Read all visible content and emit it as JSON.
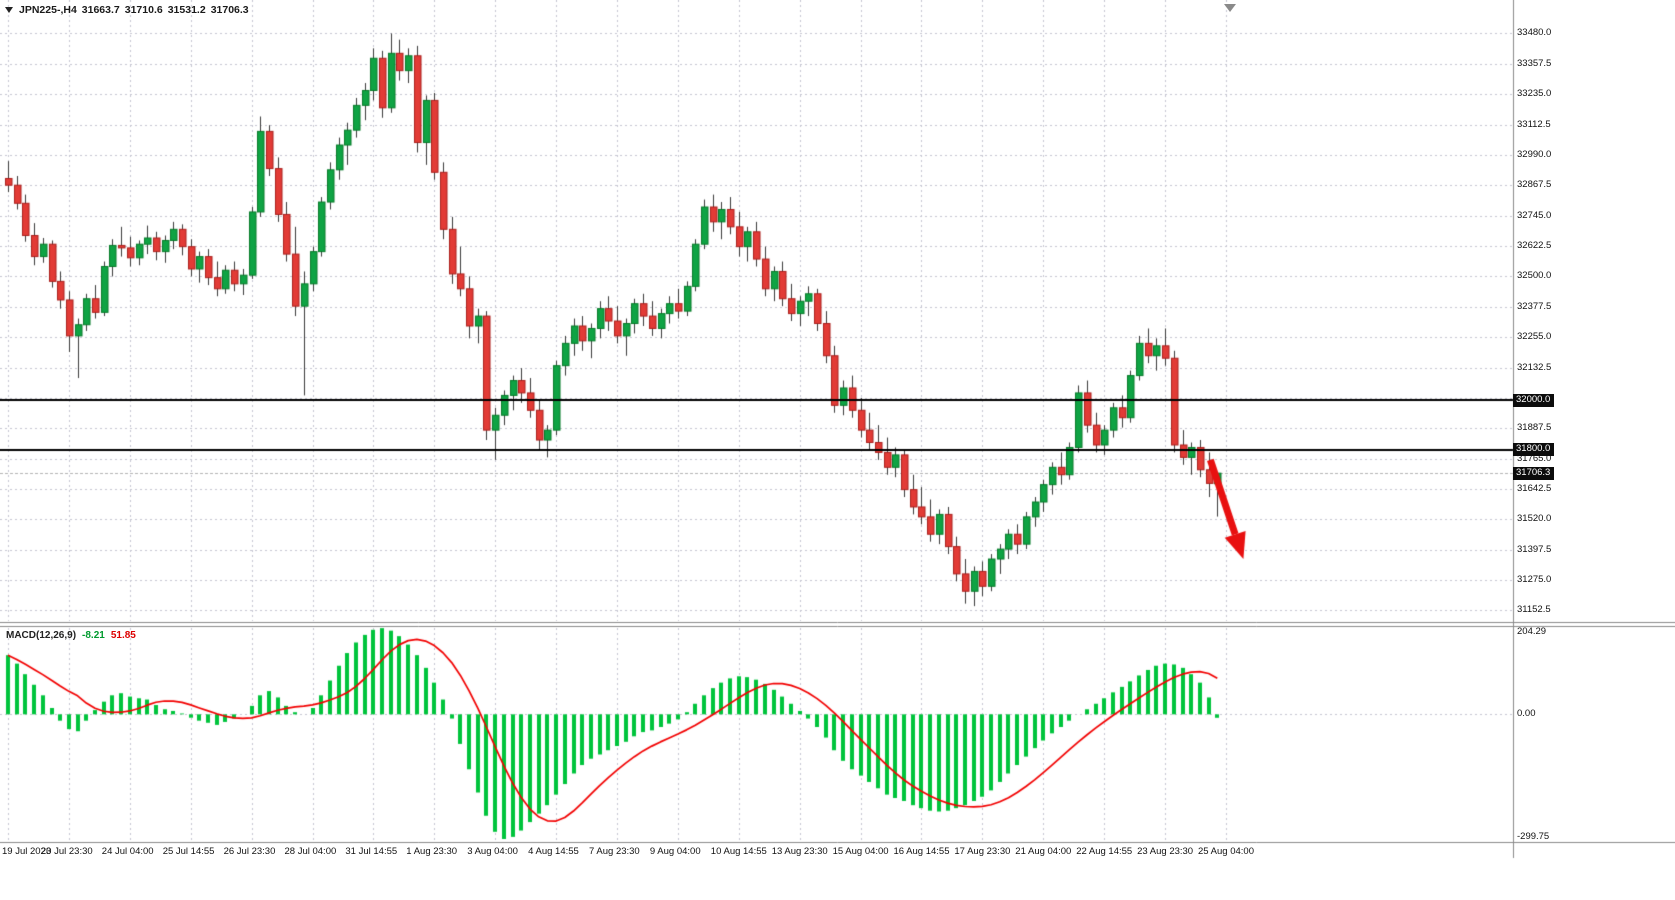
{
  "header": {
    "symbol": "JPN225-,H4",
    "open": "31663.7",
    "high": "31710.6",
    "low": "31531.2",
    "close": "31706.3"
  },
  "macd_label": {
    "title": "MACD(12,26,9)",
    "value": "-8.21",
    "signal_value": "51.85"
  },
  "price_axis": {
    "ticks": [
      "33480.0",
      "33357.5",
      "33235.0",
      "33112.5",
      "32990.0",
      "32867.5",
      "32745.0",
      "32622.5",
      "32500.0",
      "32377.5",
      "32255.0",
      "32132.5",
      "32010.0",
      "31887.5",
      "31765.0",
      "31642.5",
      "31520.0",
      "31397.5",
      "31275.0",
      "31152.5"
    ],
    "badges": [
      {
        "text": "32000.0",
        "value": 32000.0,
        "type": "hline-level"
      },
      {
        "text": "31800.0",
        "value": 31800.0,
        "type": "hline-level"
      },
      {
        "text": "31706.3",
        "value": 31706.3,
        "type": "current-price"
      }
    ]
  },
  "macd_axis": {
    "labels": [
      "204.29",
      "0.00",
      "-299.75"
    ]
  },
  "time_axis": {
    "labels": [
      "19 Jul 2023",
      "20 Jul 23:30",
      "24 Jul 04:00",
      "25 Jul 14:55",
      "26 Jul 23:30",
      "28 Jul 04:00",
      "31 Jul 14:55",
      "1 Aug 23:30",
      "3 Aug 04:00",
      "4 Aug 14:55",
      "7 Aug 23:30",
      "9 Aug 04:00",
      "10 Aug 14:55",
      "13 Aug 23:30",
      "15 Aug 04:00",
      "16 Aug 14:55",
      "17 Aug 23:30",
      "21 Aug 04:00",
      "22 Aug 14:55",
      "23 Aug 23:30",
      "25 Aug 04:00"
    ]
  },
  "chart_data": {
    "type": "candlestick",
    "symbol": "JPN225-",
    "timeframe": "H4",
    "indicator": "MACD(12,26,9)",
    "price_range": [
      31110,
      33615
    ],
    "macd_range": [
      -299.75,
      204.29
    ],
    "hlines": [
      32000.0,
      31800.0
    ],
    "current_price": 31706.3,
    "candles_per_time_label": 7,
    "candles": [
      [
        32895,
        32965,
        32840,
        32868
      ],
      [
        32868,
        32905,
        32770,
        32795
      ],
      [
        32795,
        32830,
        32640,
        32665
      ],
      [
        32665,
        32715,
        32545,
        32580
      ],
      [
        32580,
        32655,
        32555,
        32630
      ],
      [
        32630,
        32645,
        32455,
        32480
      ],
      [
        32480,
        32520,
        32370,
        32405
      ],
      [
        32405,
        32440,
        32195,
        32260
      ],
      [
        32260,
        32330,
        32090,
        32305
      ],
      [
        32305,
        32430,
        32280,
        32410
      ],
      [
        32410,
        32465,
        32330,
        32355
      ],
      [
        32355,
        32560,
        32340,
        32540
      ],
      [
        32540,
        32650,
        32500,
        32625
      ],
      [
        32625,
        32700,
        32580,
        32615
      ],
      [
        32615,
        32660,
        32540,
        32575
      ],
      [
        32575,
        32645,
        32545,
        32630
      ],
      [
        32630,
        32705,
        32590,
        32655
      ],
      [
        32655,
        32680,
        32565,
        32600
      ],
      [
        32600,
        32665,
        32555,
        32645
      ],
      [
        32645,
        32720,
        32610,
        32690
      ],
      [
        32690,
        32710,
        32585,
        32620
      ],
      [
        32620,
        32650,
        32500,
        32530
      ],
      [
        32530,
        32600,
        32475,
        32580
      ],
      [
        32580,
        32610,
        32465,
        32495
      ],
      [
        32495,
        32560,
        32420,
        32450
      ],
      [
        32450,
        32545,
        32430,
        32525
      ],
      [
        32525,
        32560,
        32440,
        32470
      ],
      [
        32470,
        32530,
        32425,
        32505
      ],
      [
        32505,
        32780,
        32490,
        32760
      ],
      [
        32760,
        33145,
        32740,
        33085
      ],
      [
        33085,
        33110,
        32905,
        32935
      ],
      [
        32935,
        32980,
        32720,
        32750
      ],
      [
        32750,
        32800,
        32560,
        32590
      ],
      [
        32590,
        32700,
        32340,
        32380
      ],
      [
        32380,
        32520,
        32020,
        32470
      ],
      [
        32470,
        32620,
        32440,
        32600
      ],
      [
        32600,
        32820,
        32580,
        32800
      ],
      [
        32800,
        32960,
        32770,
        32930
      ],
      [
        32930,
        33060,
        32890,
        33030
      ],
      [
        33030,
        33120,
        32950,
        33090
      ],
      [
        33090,
        33220,
        33060,
        33190
      ],
      [
        33190,
        33280,
        33130,
        33250
      ],
      [
        33250,
        33420,
        33210,
        33380
      ],
      [
        33380,
        33410,
        33140,
        33180
      ],
      [
        33180,
        33480,
        33160,
        33400
      ],
      [
        33400,
        33455,
        33290,
        33330
      ],
      [
        33330,
        33420,
        33280,
        33390
      ],
      [
        33390,
        33430,
        33000,
        33040
      ],
      [
        33040,
        33230,
        32950,
        33210
      ],
      [
        33210,
        33240,
        32890,
        32920
      ],
      [
        32920,
        32960,
        32650,
        32690
      ],
      [
        32690,
        32740,
        32470,
        32510
      ],
      [
        32510,
        32620,
        32420,
        32450
      ],
      [
        32450,
        32500,
        32250,
        32300
      ],
      [
        32300,
        32370,
        32230,
        32340
      ],
      [
        32340,
        32360,
        31840,
        31880
      ],
      [
        31880,
        31970,
        31760,
        31940
      ],
      [
        31940,
        32040,
        31900,
        32020
      ],
      [
        32020,
        32100,
        31960,
        32080
      ],
      [
        32080,
        32130,
        31990,
        32030
      ],
      [
        32030,
        32090,
        31930,
        31960
      ],
      [
        31960,
        32000,
        31800,
        31840
      ],
      [
        31840,
        31900,
        31770,
        31880
      ],
      [
        31880,
        32160,
        31860,
        32140
      ],
      [
        32140,
        32260,
        32100,
        32230
      ],
      [
        32230,
        32330,
        32180,
        32300
      ],
      [
        32300,
        32340,
        32200,
        32240
      ],
      [
        32240,
        32310,
        32170,
        32290
      ],
      [
        32290,
        32400,
        32250,
        32370
      ],
      [
        32370,
        32420,
        32280,
        32320
      ],
      [
        32320,
        32380,
        32230,
        32260
      ],
      [
        32260,
        32330,
        32180,
        32310
      ],
      [
        32310,
        32410,
        32270,
        32390
      ],
      [
        32390,
        32430,
        32300,
        32340
      ],
      [
        32340,
        32400,
        32260,
        32290
      ],
      [
        32290,
        32370,
        32250,
        32350
      ],
      [
        32350,
        32420,
        32310,
        32390
      ],
      [
        32390,
        32450,
        32330,
        32360
      ],
      [
        32360,
        32480,
        32340,
        32460
      ],
      [
        32460,
        32650,
        32440,
        32630
      ],
      [
        32630,
        32810,
        32610,
        32780
      ],
      [
        32780,
        32830,
        32680,
        32720
      ],
      [
        32720,
        32800,
        32650,
        32770
      ],
      [
        32770,
        32820,
        32670,
        32700
      ],
      [
        32700,
        32760,
        32580,
        32620
      ],
      [
        32620,
        32700,
        32560,
        32680
      ],
      [
        32680,
        32720,
        32540,
        32570
      ],
      [
        32570,
        32620,
        32420,
        32450
      ],
      [
        32450,
        32540,
        32400,
        32520
      ],
      [
        32520,
        32560,
        32380,
        32410
      ],
      [
        32410,
        32470,
        32320,
        32350
      ],
      [
        32350,
        32420,
        32300,
        32400
      ],
      [
        32400,
        32460,
        32340,
        32430
      ],
      [
        32430,
        32450,
        32280,
        32310
      ],
      [
        32310,
        32360,
        32150,
        32180
      ],
      [
        32180,
        32220,
        31950,
        31980
      ],
      [
        31980,
        32080,
        31940,
        32050
      ],
      [
        32050,
        32100,
        31930,
        31960
      ],
      [
        31960,
        32010,
        31850,
        31880
      ],
      [
        31880,
        31950,
        31800,
        31830
      ],
      [
        31830,
        31900,
        31760,
        31790
      ],
      [
        31790,
        31850,
        31700,
        31730
      ],
      [
        31730,
        31810,
        31690,
        31780
      ],
      [
        31780,
        31800,
        31610,
        31640
      ],
      [
        31640,
        31700,
        31540,
        31570
      ],
      [
        31570,
        31650,
        31500,
        31530
      ],
      [
        31530,
        31600,
        31430,
        31460
      ],
      [
        31460,
        31560,
        31420,
        31540
      ],
      [
        31540,
        31570,
        31380,
        31410
      ],
      [
        31410,
        31450,
        31270,
        31300
      ],
      [
        31300,
        31360,
        31180,
        31230
      ],
      [
        31230,
        31330,
        31170,
        31310
      ],
      [
        31310,
        31350,
        31210,
        31250
      ],
      [
        31250,
        31380,
        31230,
        31360
      ],
      [
        31360,
        31420,
        31300,
        31400
      ],
      [
        31400,
        31480,
        31360,
        31460
      ],
      [
        31460,
        31500,
        31380,
        31420
      ],
      [
        31420,
        31550,
        31400,
        31530
      ],
      [
        31530,
        31610,
        31490,
        31590
      ],
      [
        31590,
        31680,
        31550,
        31660
      ],
      [
        31660,
        31750,
        31620,
        31730
      ],
      [
        31730,
        31790,
        31660,
        31700
      ],
      [
        31700,
        31830,
        31680,
        31810
      ],
      [
        31810,
        32060,
        31790,
        32030
      ],
      [
        32030,
        32080,
        31870,
        31900
      ],
      [
        31900,
        31950,
        31790,
        31820
      ],
      [
        31820,
        31900,
        31780,
        31880
      ],
      [
        31880,
        31990,
        31850,
        31970
      ],
      [
        31970,
        32020,
        31890,
        31930
      ],
      [
        31930,
        32120,
        31910,
        32100
      ],
      [
        32100,
        32260,
        32080,
        32230
      ],
      [
        32230,
        32290,
        32150,
        32180
      ],
      [
        32180,
        32250,
        32120,
        32220
      ],
      [
        32220,
        32290,
        32140,
        32170
      ],
      [
        32170,
        32200,
        31790,
        31820
      ],
      [
        31820,
        31880,
        31740,
        31770
      ],
      [
        31770,
        31830,
        31700,
        31810
      ],
      [
        31810,
        31840,
        31690,
        31720
      ],
      [
        31720,
        31790,
        31610,
        31665
      ],
      [
        31663.7,
        31710.6,
        31531.2,
        31706.3
      ]
    ],
    "macd_histogram": [
      140,
      120,
      95,
      70,
      45,
      15,
      -15,
      -35,
      -40,
      -15,
      10,
      30,
      45,
      50,
      42,
      38,
      35,
      22,
      12,
      8,
      2,
      -8,
      -15,
      -20,
      -25,
      -18,
      -10,
      0,
      20,
      45,
      55,
      40,
      20,
      5,
      0,
      15,
      45,
      80,
      115,
      145,
      170,
      188,
      200,
      204,
      198,
      185,
      165,
      140,
      110,
      75,
      35,
      -10,
      -70,
      -130,
      -185,
      -240,
      -278,
      -295,
      -290,
      -275,
      -255,
      -235,
      -215,
      -190,
      -165,
      -140,
      -120,
      -105,
      -95,
      -85,
      -75,
      -65,
      -52,
      -42,
      -38,
      -30,
      -22,
      -12,
      5,
      25,
      45,
      62,
      75,
      85,
      90,
      88,
      82,
      72,
      58,
      42,
      25,
      8,
      -10,
      -30,
      -55,
      -85,
      -110,
      -130,
      -145,
      -160,
      -175,
      -190,
      -198,
      -205,
      -215,
      -222,
      -228,
      -230,
      -228,
      -222,
      -215,
      -205,
      -195,
      -180,
      -160,
      -140,
      -120,
      -100,
      -80,
      -62,
      -45,
      -30,
      -15,
      0,
      12,
      25,
      38,
      52,
      65,
      78,
      92,
      105,
      115,
      120,
      118,
      110,
      95,
      75,
      40,
      -8.21
    ],
    "annotation_arrow": {
      "from_index": 138.2,
      "from_price": 31760,
      "to_index": 142.0,
      "to_price": 31360
    },
    "colors": {
      "up_candle": "#0fa344",
      "up_border": "#067a28",
      "down_candle": "#e23b36",
      "down_border": "#aa1f1c",
      "wick": "#3a3a3a",
      "grid": "#c6c6d2",
      "hline": "#000000",
      "current_price_line": "#b4b4b4",
      "macd_histogram": "#00c43c",
      "macd_signal": "#f20000",
      "arrow": "#e81010",
      "separator": "#8a8a8a",
      "badge_bg": "#0c0c0c"
    }
  }
}
